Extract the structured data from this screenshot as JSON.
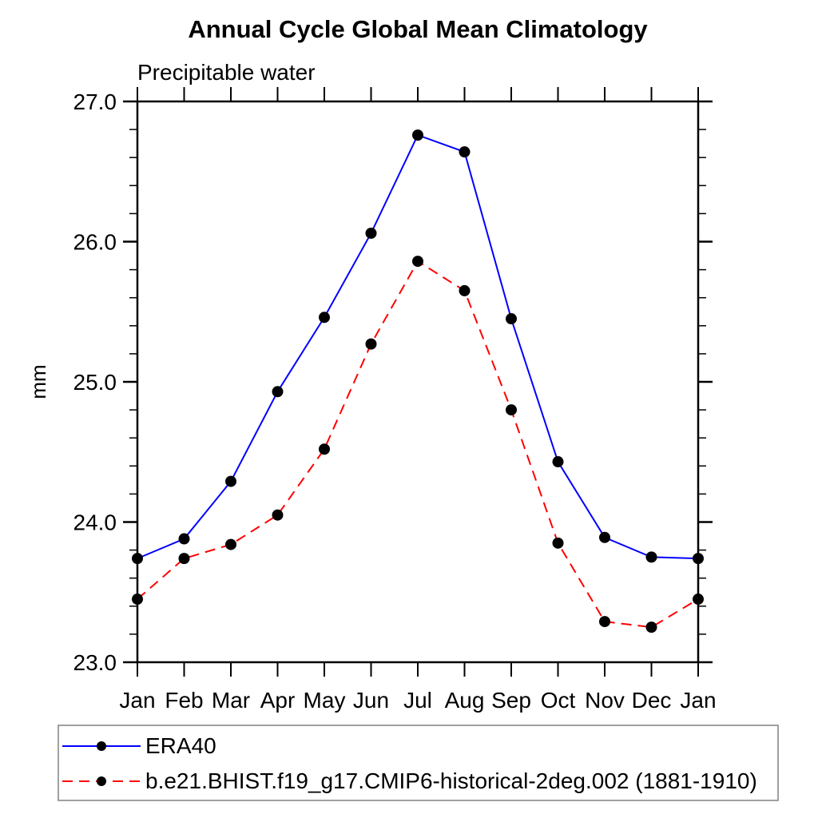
{
  "chart_data": {
    "type": "line",
    "title": "Annual Cycle Global Mean Climatology",
    "subtitle": "Precipitable water",
    "xlabel": "",
    "ylabel": "mm",
    "categories": [
      "Jan",
      "Feb",
      "Mar",
      "Apr",
      "May",
      "Jun",
      "Jul",
      "Aug",
      "Sep",
      "Oct",
      "Nov",
      "Dec",
      "Jan"
    ],
    "series": [
      {
        "name": "ERA40",
        "color": "#0000ff",
        "line_style": "solid",
        "marker": "filled-circle",
        "marker_color": "#000000",
        "values": [
          23.74,
          23.88,
          24.29,
          24.93,
          25.46,
          26.06,
          26.76,
          26.64,
          25.45,
          24.43,
          23.89,
          23.75,
          23.74
        ]
      },
      {
        "name": "b.e21.BHIST.f19_g17.CMIP6-historical-2deg.002 (1881-1910)",
        "color": "#ff0000",
        "line_style": "dashed",
        "marker": "filled-circle",
        "marker_color": "#000000",
        "values": [
          23.45,
          23.74,
          23.84,
          24.05,
          24.52,
          25.27,
          25.86,
          25.65,
          24.8,
          23.85,
          23.29,
          23.25,
          23.45
        ]
      }
    ],
    "ylim": [
      23.0,
      27.0
    ],
    "ytick_values": [
      23.0,
      24.0,
      25.0,
      26.0,
      27.0
    ],
    "ytick_labels": [
      "23.0",
      "24.0",
      "25.0",
      "26.0",
      "27.0"
    ],
    "ytick_minor_step": 0.2,
    "grid": false,
    "legend_position": "bottom",
    "axis_color": "#000000",
    "frame": "box-with-outward-ticks"
  }
}
